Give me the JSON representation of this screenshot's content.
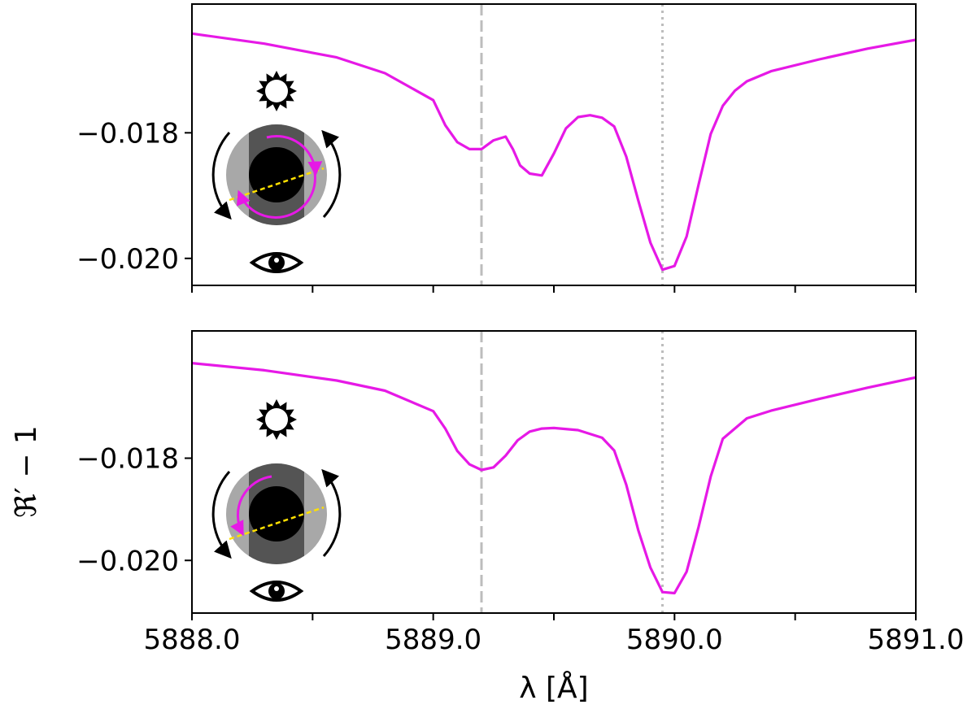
{
  "figure": {
    "shared_xlabel": "λ [Å]",
    "shared_ylabel": "ℜ′ − 1"
  },
  "chart_data": [
    {
      "type": "line",
      "panel": "top",
      "xlim": [
        5888.0,
        5891.0
      ],
      "ylim": [
        -0.02043,
        -0.01595
      ],
      "xticks": [
        5888.0,
        5888.5,
        5889.0,
        5889.5,
        5890.0,
        5890.5,
        5891.0
      ],
      "xtick_labels": [],
      "yticks": [
        -0.018,
        -0.02
      ],
      "ytick_labels": [
        "−0.018",
        "−0.020"
      ],
      "vlines": [
        {
          "x": 5889.2,
          "style": "dashed",
          "color": "#bdbdbd"
        },
        {
          "x": 5889.95,
          "style": "dotted",
          "color": "#bdbdbd"
        }
      ],
      "series": [
        {
          "color": "#e619e6",
          "x": [
            5888.0,
            5888.3,
            5888.6,
            5888.8,
            5889.0,
            5889.05,
            5889.1,
            5889.15,
            5889.2,
            5889.25,
            5889.3,
            5889.33,
            5889.36,
            5889.4,
            5889.45,
            5889.5,
            5889.55,
            5889.6,
            5889.65,
            5889.7,
            5889.75,
            5889.8,
            5889.85,
            5889.9,
            5889.95,
            5890.0,
            5890.05,
            5890.1,
            5890.15,
            5890.2,
            5890.25,
            5890.3,
            5890.4,
            5890.6,
            5890.8,
            5891.0
          ],
          "y": [
            -0.01642,
            -0.01658,
            -0.0168,
            -0.01705,
            -0.01748,
            -0.01788,
            -0.01815,
            -0.01826,
            -0.01826,
            -0.01812,
            -0.01806,
            -0.01826,
            -0.01852,
            -0.01865,
            -0.01868,
            -0.01833,
            -0.01793,
            -0.01775,
            -0.01772,
            -0.01776,
            -0.0179,
            -0.01838,
            -0.01908,
            -0.01975,
            -0.02018,
            -0.02012,
            -0.01965,
            -0.01882,
            -0.01802,
            -0.01757,
            -0.01733,
            -0.01718,
            -0.01702,
            -0.01683,
            -0.01666,
            -0.01652
          ]
        }
      ]
    },
    {
      "type": "line",
      "panel": "bottom",
      "xlim": [
        5888.0,
        5891.0
      ],
      "ylim": [
        -0.02103,
        -0.01551
      ],
      "xticks": [
        5888.0,
        5888.5,
        5889.0,
        5889.5,
        5890.0,
        5890.5,
        5891.0
      ],
      "xtick_labels": [
        "5888.0",
        "",
        "5889.0",
        "",
        "5890.0",
        "",
        "5891.0"
      ],
      "yticks": [
        -0.018,
        -0.02
      ],
      "ytick_labels": [
        "−0.018",
        "−0.020"
      ],
      "vlines": [
        {
          "x": 5889.2,
          "style": "dashed",
          "color": "#bdbdbd"
        },
        {
          "x": 5889.95,
          "style": "dotted",
          "color": "#bdbdbd"
        }
      ],
      "series": [
        {
          "color": "#e619e6",
          "x": [
            5888.0,
            5888.3,
            5888.6,
            5888.8,
            5889.0,
            5889.05,
            5889.1,
            5889.15,
            5889.2,
            5889.25,
            5889.3,
            5889.35,
            5889.4,
            5889.45,
            5889.5,
            5889.6,
            5889.7,
            5889.75,
            5889.8,
            5889.85,
            5889.9,
            5889.95,
            5890.0,
            5890.05,
            5890.1,
            5890.15,
            5890.2,
            5890.3,
            5890.4,
            5890.6,
            5890.8,
            5891.0
          ],
          "y": [
            -0.01614,
            -0.01628,
            -0.01648,
            -0.01668,
            -0.01708,
            -0.01742,
            -0.01786,
            -0.01812,
            -0.01823,
            -0.01818,
            -0.01795,
            -0.01765,
            -0.01748,
            -0.01742,
            -0.01741,
            -0.01745,
            -0.0176,
            -0.01785,
            -0.01852,
            -0.01941,
            -0.02014,
            -0.02062,
            -0.02064,
            -0.02022,
            -0.01934,
            -0.01836,
            -0.01762,
            -0.01722,
            -0.01707,
            -0.01684,
            -0.01662,
            -0.01642
          ]
        }
      ]
    }
  ],
  "insets": [
    {
      "panel": "top",
      "sun_icon": "sun-icon",
      "eye_icon": "eye-icon",
      "planet_colors": {
        "core": "#000000",
        "band": "#545454",
        "atmosphere": "#a8a8a8",
        "arrow": "#e619e6",
        "path": "#ffe000"
      }
    },
    {
      "panel": "bottom",
      "sun_icon": "sun-icon",
      "eye_icon": "eye-icon",
      "planet_colors": {
        "core": "#000000",
        "band": "#545454",
        "atmosphere": "#a8a8a8",
        "arrow": "#e619e6",
        "path": "#ffe000"
      }
    }
  ]
}
